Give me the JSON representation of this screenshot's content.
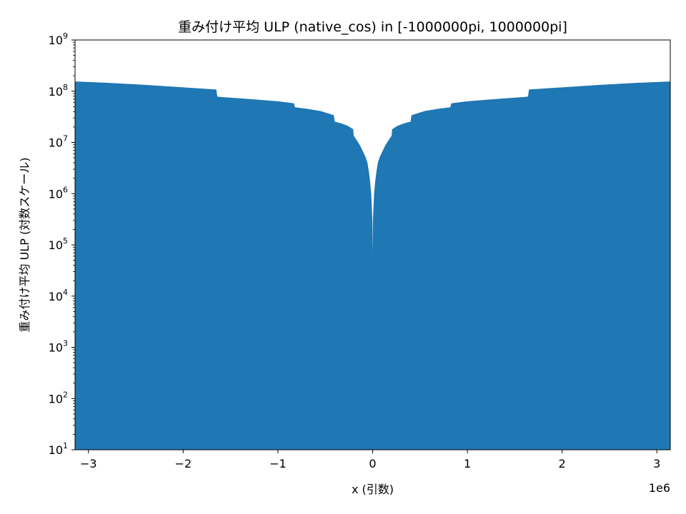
{
  "chart_data": {
    "type": "area",
    "title": "重み付け平均 ULP (native_cos) in [-1000000pi, 1000000pi]",
    "xlabel": "x (引数)",
    "ylabel": "重み付け平均 ULP (対数スケール)",
    "x_offset_text": "1e6",
    "xlim": [
      -3.14159,
      3.14159
    ],
    "ylim": [
      10,
      1000000000
    ],
    "yscale": "log",
    "grid": false,
    "color": "#1f77b4",
    "x_ticks": [
      {
        "value": -3,
        "label": "−3"
      },
      {
        "value": -2,
        "label": "−2"
      },
      {
        "value": -1,
        "label": "−1"
      },
      {
        "value": 0,
        "label": "0"
      },
      {
        "value": 1,
        "label": "1"
      },
      {
        "value": 2,
        "label": "2"
      },
      {
        "value": 3,
        "label": "3"
      }
    ],
    "y_ticks": [
      {
        "value": 10,
        "base": "10",
        "exp": "1"
      },
      {
        "value": 100,
        "base": "10",
        "exp": "2"
      },
      {
        "value": 1000,
        "base": "10",
        "exp": "3"
      },
      {
        "value": 10000,
        "base": "10",
        "exp": "4"
      },
      {
        "value": 100000,
        "base": "10",
        "exp": "5"
      },
      {
        "value": 1000000,
        "base": "10",
        "exp": "6"
      },
      {
        "value": 10000000,
        "base": "10",
        "exp": "7"
      },
      {
        "value": 100000000,
        "base": "10",
        "exp": "8"
      },
      {
        "value": 1000000000,
        "base": "10",
        "exp": "9"
      }
    ],
    "series": [
      {
        "x": [
          0,
          0.003,
          0.008,
          0.015,
          0.025,
          0.04,
          0.055,
          0.075,
          0.1,
          0.13,
          0.16,
          0.2,
          0.205,
          0.26,
          0.33,
          0.4,
          0.41,
          0.55,
          0.7,
          0.82,
          0.83,
          1.0,
          1.2,
          1.4,
          1.6,
          1.64,
          1.65,
          2.0,
          2.4,
          2.8,
          3.14159
        ],
        "y": [
          70000,
          300000,
          500000,
          1000000,
          1600000,
          2700000,
          4000000,
          5200000,
          6500000,
          8500000,
          10500000,
          13500000,
          18000000,
          21000000,
          23500000,
          25500000,
          34000000,
          41000000,
          45500000,
          48500000,
          58000000,
          63500000,
          68000000,
          72500000,
          77000000,
          78500000,
          108000000,
          119000000,
          133000000,
          146000000,
          155000000
        ]
      }
    ]
  }
}
